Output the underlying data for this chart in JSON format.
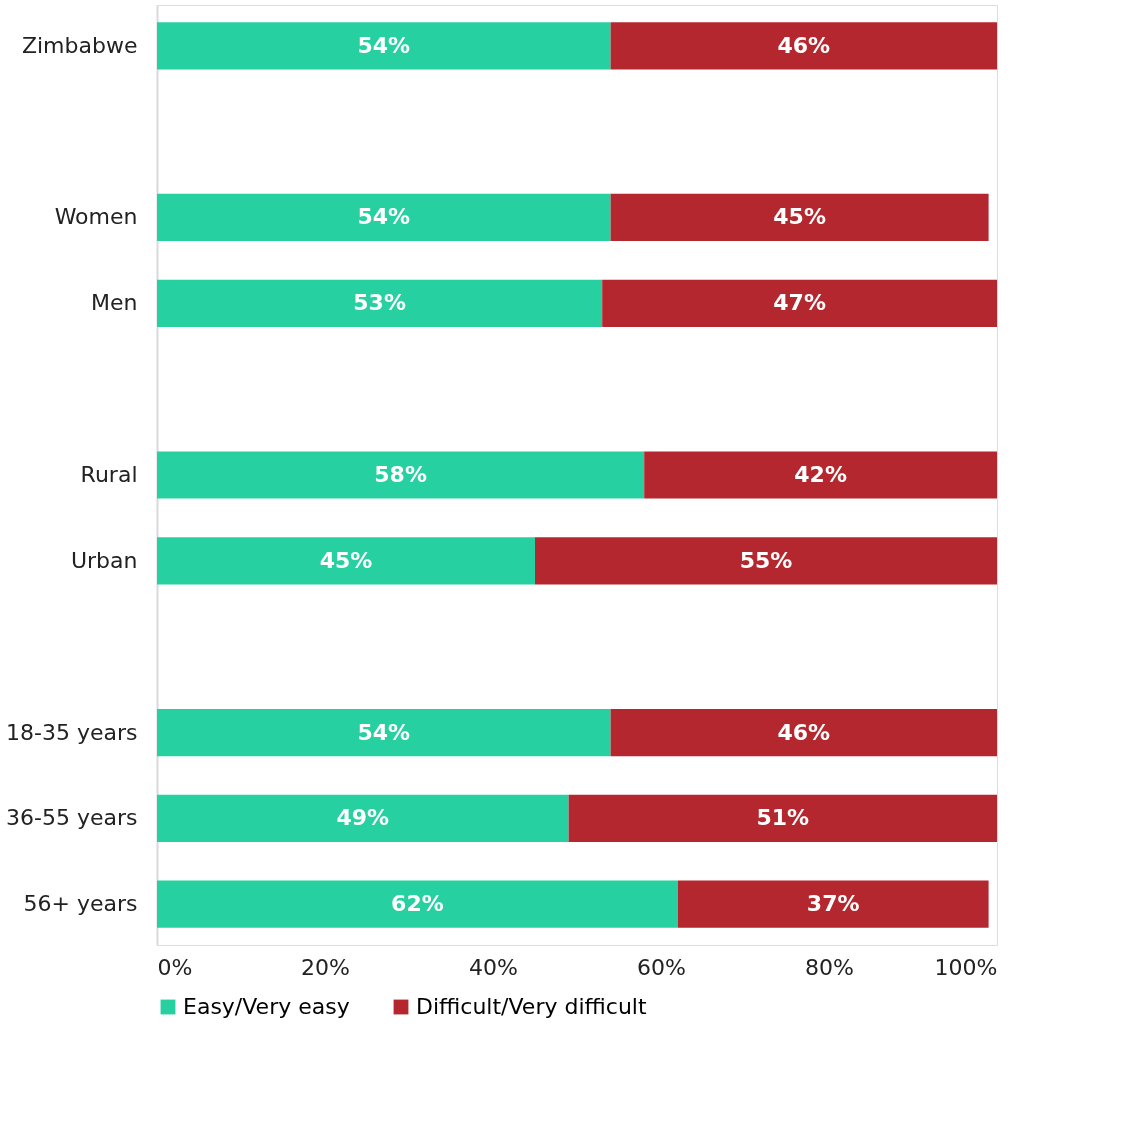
{
  "chart_data": {
    "type": "bar",
    "orientation": "horizontal",
    "stacked": true,
    "categories": [
      "Zimbabwe",
      null,
      "Women",
      "Men",
      null,
      "Rural",
      "Urban",
      null,
      "18-35 years",
      "36-55 years",
      "56+ years"
    ],
    "series": [
      {
        "name": "Easy/Very easy",
        "color": "#26d0a0",
        "values": [
          54,
          null,
          54,
          53,
          null,
          58,
          45,
          null,
          54,
          49,
          62
        ],
        "value_labels": [
          "54%",
          null,
          "54%",
          "53%",
          null,
          "58%",
          "45%",
          null,
          "54%",
          "49%",
          "62%"
        ]
      },
      {
        "name": "Difficult/Very difficult",
        "color": "#b5272e",
        "values": [
          46,
          null,
          45,
          47,
          null,
          42,
          55,
          null,
          46,
          51,
          37
        ],
        "value_labels": [
          "46%",
          null,
          "45%",
          "47%",
          null,
          "42%",
          "55%",
          null,
          "46%",
          "51%",
          "37%"
        ]
      }
    ],
    "xlim": [
      0,
      100
    ],
    "xticks": [
      {
        "value": 0,
        "label": "0%"
      },
      {
        "value": 20,
        "label": "20%"
      },
      {
        "value": 40,
        "label": "40%"
      },
      {
        "value": 60,
        "label": "60%"
      },
      {
        "value": 80,
        "label": "80%"
      },
      {
        "value": 100,
        "label": "100%"
      }
    ],
    "grid": false,
    "legend": "bottom"
  }
}
